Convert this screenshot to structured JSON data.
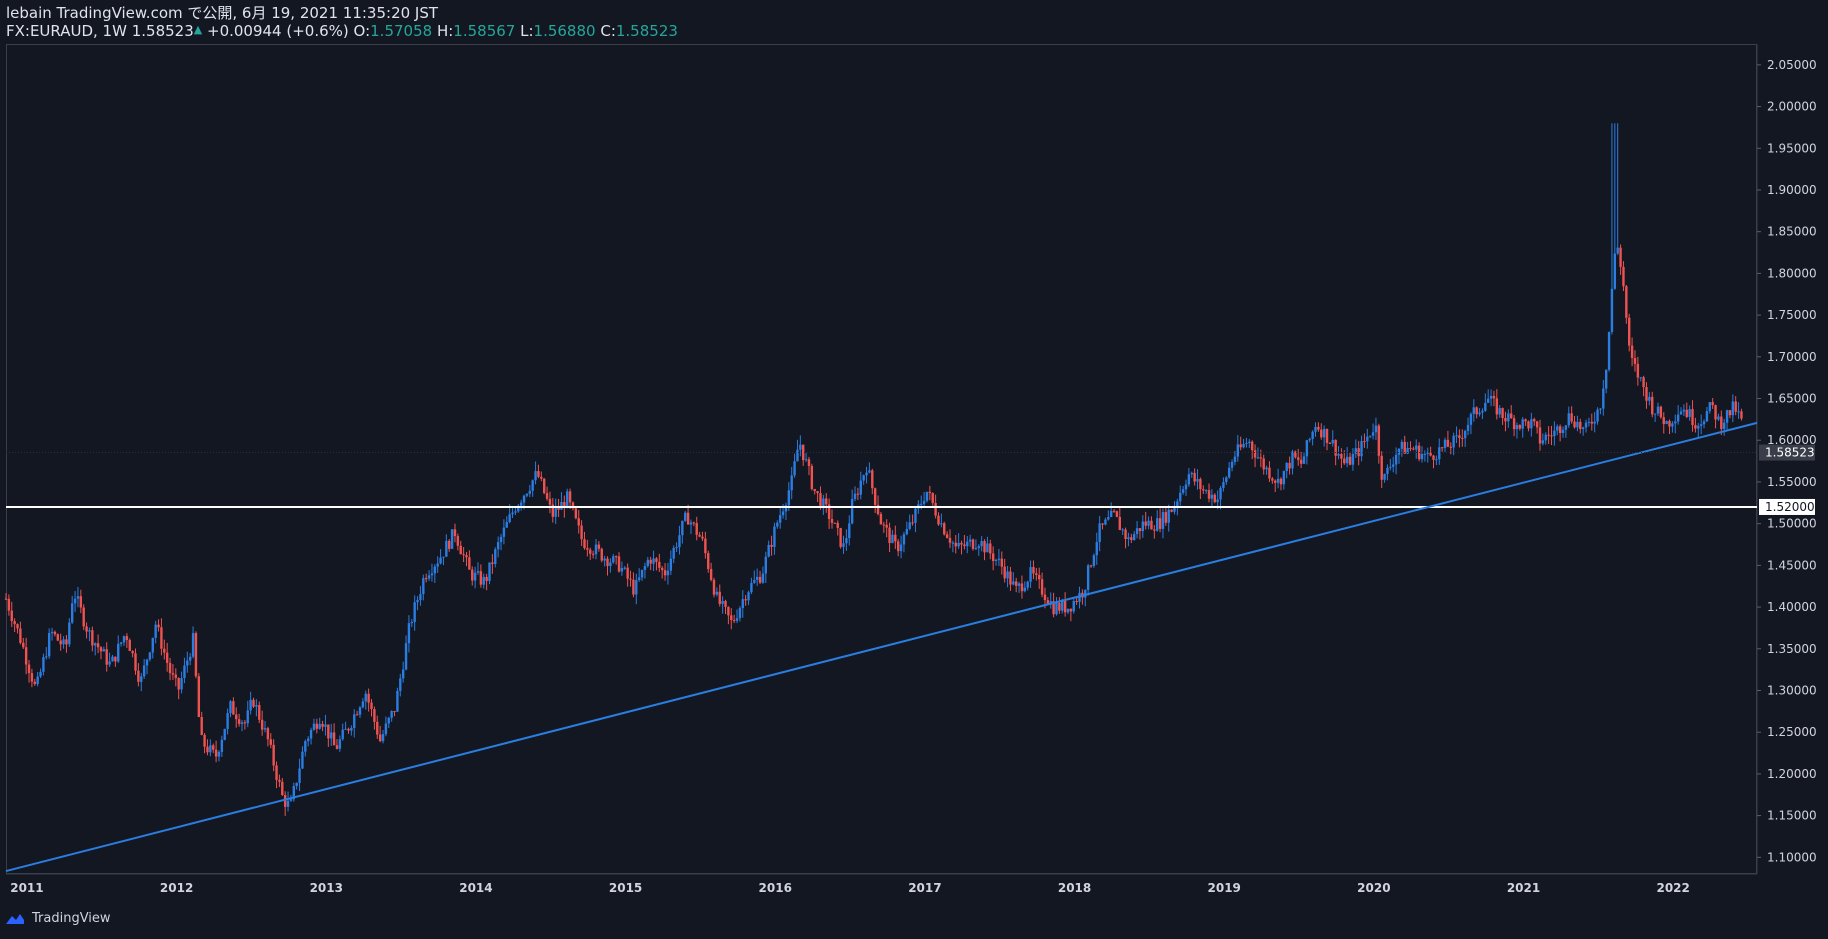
{
  "header": {
    "published_line": "lebain TradingView.com で公開, 6月 19, 2021 11:35:20 JST",
    "symbol": "FX:EURAUD, 1W",
    "last": "1.58523",
    "change": "+0.00944 (+0.6%)",
    "o_label": "O:",
    "o_val": "1.57058",
    "h_label": "H:",
    "h_val": "1.58567",
    "l_label": "L:",
    "l_val": "1.56880",
    "c_label": "C:",
    "c_val": "1.58523"
  },
  "footer": {
    "brand": "TradingView"
  },
  "colors": {
    "background": "#131722",
    "up": "#2a7de1",
    "down": "#ef5350",
    "trendline": "#2a7de1",
    "hline": "#ffffff",
    "axis_text": "#d1d4dc",
    "teal": "#26a69a"
  },
  "chart_data": {
    "type": "candlestick",
    "title": "FX:EURAUD, 1W",
    "y_ticks": [
      "1.10000",
      "1.15000",
      "1.20000",
      "1.25000",
      "1.30000",
      "1.35000",
      "1.40000",
      "1.45000",
      "1.50000",
      "1.55000",
      "1.60000",
      "1.65000",
      "1.70000",
      "1.75000",
      "1.80000",
      "1.85000",
      "1.90000",
      "1.95000",
      "2.00000",
      "2.05000"
    ],
    "ylim": [
      1.08,
      2.075
    ],
    "x_ticks": [
      "2011",
      "2012",
      "2013",
      "2014",
      "2015",
      "2016",
      "2017",
      "2018",
      "2019",
      "2020",
      "2021",
      "2022"
    ],
    "xlim": [
      2010.9,
      2022.6
    ],
    "price_label": "1.58523",
    "horizontal_line": {
      "value": 1.52,
      "label": "1.52000"
    },
    "trendline": {
      "x1": 2010.9,
      "y1": 1.0835,
      "x2": 2022.6,
      "y2": 1.6208
    },
    "path": [
      [
        2010.9,
        1.41
      ],
      [
        2011.0,
        1.36
      ],
      [
        2011.1,
        1.3
      ],
      [
        2011.2,
        1.37
      ],
      [
        2011.3,
        1.35
      ],
      [
        2011.35,
        1.42
      ],
      [
        2011.45,
        1.37
      ],
      [
        2011.6,
        1.33
      ],
      [
        2011.7,
        1.37
      ],
      [
        2011.8,
        1.31
      ],
      [
        2011.9,
        1.38
      ],
      [
        2012.0,
        1.32
      ],
      [
        2012.05,
        1.3
      ],
      [
        2012.15,
        1.36
      ],
      [
        2012.2,
        1.24
      ],
      [
        2012.3,
        1.22
      ],
      [
        2012.4,
        1.28
      ],
      [
        2012.5,
        1.26
      ],
      [
        2012.55,
        1.29
      ],
      [
        2012.65,
        1.24
      ],
      [
        2012.75,
        1.17
      ],
      [
        2012.8,
        1.16
      ],
      [
        2012.9,
        1.24
      ],
      [
        2013.0,
        1.27
      ],
      [
        2013.1,
        1.23
      ],
      [
        2013.2,
        1.26
      ],
      [
        2013.3,
        1.3
      ],
      [
        2013.4,
        1.24
      ],
      [
        2013.5,
        1.28
      ],
      [
        2013.6,
        1.38
      ],
      [
        2013.7,
        1.44
      ],
      [
        2013.8,
        1.46
      ],
      [
        2013.9,
        1.49
      ],
      [
        2014.0,
        1.44
      ],
      [
        2014.1,
        1.43
      ],
      [
        2014.2,
        1.48
      ],
      [
        2014.3,
        1.52
      ],
      [
        2014.45,
        1.56
      ],
      [
        2014.55,
        1.51
      ],
      [
        2014.65,
        1.53
      ],
      [
        2014.75,
        1.48
      ],
      [
        2014.9,
        1.46
      ],
      [
        2015.0,
        1.45
      ],
      [
        2015.1,
        1.42
      ],
      [
        2015.2,
        1.46
      ],
      [
        2015.3,
        1.44
      ],
      [
        2015.45,
        1.51
      ],
      [
        2015.55,
        1.48
      ],
      [
        2015.65,
        1.41
      ],
      [
        2015.75,
        1.38
      ],
      [
        2015.85,
        1.42
      ],
      [
        2015.95,
        1.44
      ],
      [
        2016.05,
        1.5
      ],
      [
        2016.15,
        1.55
      ],
      [
        2016.2,
        1.6
      ],
      [
        2016.3,
        1.54
      ],
      [
        2016.4,
        1.51
      ],
      [
        2016.5,
        1.47
      ],
      [
        2016.55,
        1.52
      ],
      [
        2016.65,
        1.57
      ],
      [
        2016.75,
        1.5
      ],
      [
        2016.85,
        1.47
      ],
      [
        2016.95,
        1.5
      ],
      [
        2017.05,
        1.54
      ],
      [
        2017.15,
        1.5
      ],
      [
        2017.25,
        1.47
      ],
      [
        2017.4,
        1.48
      ],
      [
        2017.55,
        1.45
      ],
      [
        2017.65,
        1.42
      ],
      [
        2017.75,
        1.44
      ],
      [
        2017.9,
        1.4
      ],
      [
        2018.0,
        1.4
      ],
      [
        2018.1,
        1.42
      ],
      [
        2018.2,
        1.49
      ],
      [
        2018.3,
        1.51
      ],
      [
        2018.4,
        1.48
      ],
      [
        2018.5,
        1.5
      ],
      [
        2018.6,
        1.5
      ],
      [
        2018.7,
        1.52
      ],
      [
        2018.8,
        1.56
      ],
      [
        2018.9,
        1.54
      ],
      [
        2019.0,
        1.53
      ],
      [
        2019.1,
        1.58
      ],
      [
        2019.2,
        1.6
      ],
      [
        2019.3,
        1.57
      ],
      [
        2019.4,
        1.55
      ],
      [
        2019.5,
        1.58
      ],
      [
        2019.55,
        1.57
      ],
      [
        2019.65,
        1.62
      ],
      [
        2019.75,
        1.6
      ],
      [
        2019.85,
        1.57
      ],
      [
        2019.95,
        1.59
      ],
      [
        2020.05,
        1.62
      ],
      [
        2020.1,
        1.55
      ],
      [
        2020.2,
        1.59
      ],
      [
        2020.3,
        1.59
      ],
      [
        2020.4,
        1.58
      ],
      [
        2020.5,
        1.59
      ],
      [
        2020.6,
        1.6
      ],
      [
        2020.7,
        1.63
      ],
      [
        2020.8,
        1.65
      ],
      [
        2020.9,
        1.63
      ],
      [
        2021.0,
        1.62
      ],
      [
        2021.1,
        1.62
      ],
      [
        2021.15,
        1.6
      ],
      [
        2021.25,
        1.61
      ],
      [
        2021.35,
        1.63
      ],
      [
        2021.45,
        1.61
      ],
      [
        2021.55,
        1.64
      ],
      [
        2021.6,
        1.7
      ],
      [
        2021.63,
        1.78
      ],
      [
        2021.66,
        1.84
      ],
      [
        2021.7,
        1.8
      ],
      [
        2021.75,
        1.7
      ],
      [
        2021.8,
        1.68
      ],
      [
        2021.9,
        1.64
      ],
      [
        2022.0,
        1.62
      ],
      [
        2022.1,
        1.64
      ],
      [
        2022.2,
        1.62
      ],
      [
        2022.3,
        1.64
      ],
      [
        2022.35,
        1.62
      ],
      [
        2022.45,
        1.64
      ],
      [
        2022.5,
        1.62
      ]
    ]
  }
}
